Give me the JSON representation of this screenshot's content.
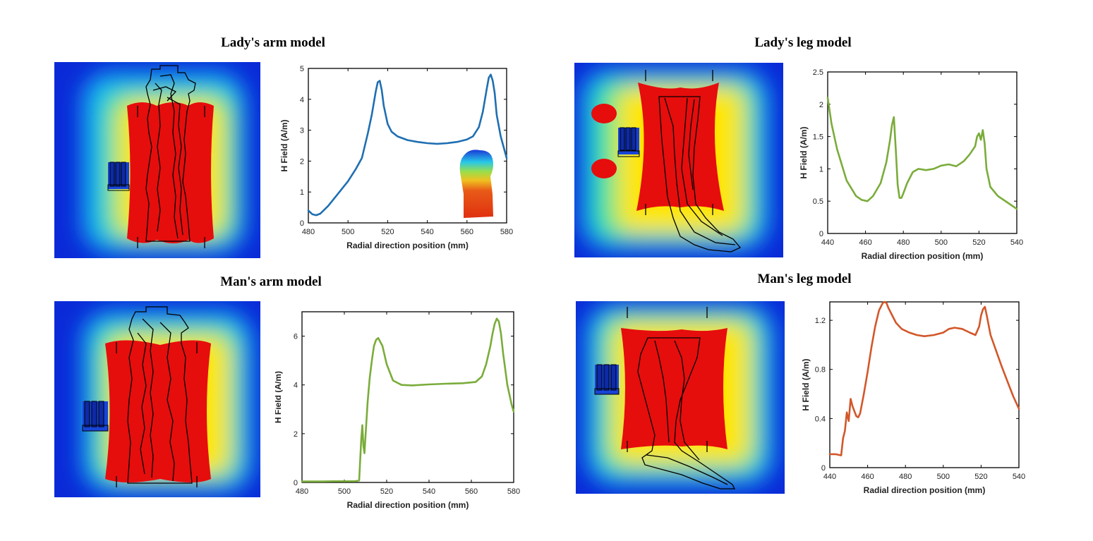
{
  "figure": {
    "panels": [
      {
        "id": "lady-arm",
        "title": "Lady's arm model"
      },
      {
        "id": "lady-leg",
        "title": "Lady's leg model"
      },
      {
        "id": "man-arm",
        "title": "Man's arm model"
      },
      {
        "id": "man-leg",
        "title": "Man's leg model"
      }
    ],
    "colors": {
      "field_high": "#e60d0d",
      "field_mid": "#ffe600",
      "field_low": "#0a2ad8",
      "outline": "#000000",
      "blue_series": "#1f6fb2",
      "green_series": "#7aac3a",
      "orange_series": "#d2572a"
    }
  },
  "chart_data": [
    {
      "id": "lady-arm",
      "type": "line",
      "title": "Lady's arm model",
      "xlabel": "Radial direction position (mm)",
      "ylabel": "H Field (A/m)",
      "xlim": [
        480,
        580
      ],
      "ylim": [
        0,
        5
      ],
      "xticks": [
        480,
        500,
        520,
        540,
        560,
        580
      ],
      "yticks": [
        0,
        1,
        2,
        3,
        4,
        5
      ],
      "ytick_labels": [
        "0",
        "1",
        "2",
        "3",
        "4",
        "5"
      ],
      "color": "#1f6fb2",
      "has_inset": true,
      "x": [
        480,
        482,
        484,
        486,
        490,
        495,
        500,
        504,
        507,
        510,
        512,
        514,
        515,
        516,
        517,
        518,
        520,
        522,
        525,
        530,
        535,
        540,
        545,
        550,
        555,
        560,
        563,
        566,
        568,
        570,
        571,
        572,
        573,
        574,
        575,
        577,
        580
      ],
      "y": [
        0.4,
        0.28,
        0.25,
        0.3,
        0.55,
        0.95,
        1.35,
        1.75,
        2.1,
        2.9,
        3.5,
        4.25,
        4.55,
        4.6,
        4.3,
        3.8,
        3.2,
        2.95,
        2.8,
        2.68,
        2.62,
        2.58,
        2.56,
        2.58,
        2.62,
        2.7,
        2.8,
        3.1,
        3.6,
        4.35,
        4.7,
        4.8,
        4.6,
        4.2,
        3.5,
        2.8,
        2.1
      ]
    },
    {
      "id": "lady-leg",
      "type": "line",
      "title": "Lady's leg model",
      "xlabel": "Radial direction position (mm)",
      "ylabel": "H Field (A/m)",
      "xlim": [
        440,
        540
      ],
      "ylim": [
        0,
        2.5
      ],
      "xticks": [
        440,
        460,
        480,
        500,
        520,
        540
      ],
      "yticks": [
        0,
        0.5,
        1,
        1.5,
        2,
        2.5
      ],
      "ytick_labels": [
        "0",
        "0.5",
        "1",
        "1.5",
        "2",
        "2.5"
      ],
      "color": "#7aac3a",
      "has_inset": false,
      "x": [
        440,
        442,
        445,
        450,
        455,
        458,
        461,
        464,
        468,
        471,
        473,
        474,
        475,
        476,
        477,
        478,
        479,
        480,
        482,
        485,
        488,
        492,
        496,
        500,
        504,
        508,
        512,
        515,
        518,
        519,
        520,
        521,
        522,
        523,
        524,
        526,
        530,
        535,
        540
      ],
      "y": [
        2.1,
        1.7,
        1.3,
        0.82,
        0.58,
        0.52,
        0.5,
        0.58,
        0.78,
        1.1,
        1.45,
        1.68,
        1.8,
        1.3,
        0.75,
        0.55,
        0.55,
        0.62,
        0.78,
        0.95,
        1.0,
        0.98,
        1.0,
        1.05,
        1.07,
        1.04,
        1.12,
        1.22,
        1.35,
        1.5,
        1.55,
        1.45,
        1.6,
        1.4,
        1.0,
        0.72,
        0.58,
        0.48,
        0.38
      ]
    },
    {
      "id": "man-arm",
      "type": "line",
      "title": "Man's arm model",
      "xlabel": "Radial direction position (mm)",
      "ylabel": "H Field (A/m)",
      "xlim": [
        480,
        580
      ],
      "ylim": [
        0,
        7
      ],
      "xticks": [
        480,
        500,
        520,
        540,
        560,
        580
      ],
      "yticks": [
        0,
        2,
        4,
        6
      ],
      "ytick_labels": [
        "0",
        "2",
        "4",
        "6"
      ],
      "color": "#7aac3a",
      "has_inset": false,
      "x": [
        480,
        485,
        490,
        495,
        500,
        505,
        507,
        508,
        508.5,
        509,
        509.5,
        510,
        511,
        512,
        513,
        514,
        515,
        516,
        518,
        520,
        523,
        527,
        532,
        540,
        548,
        556,
        562,
        565,
        567,
        569,
        570,
        571,
        572,
        573,
        574,
        575,
        577,
        579,
        580
      ],
      "y": [
        0.04,
        0.04,
        0.04,
        0.05,
        0.05,
        0.05,
        0.08,
        1.8,
        2.35,
        1.5,
        1.2,
        1.9,
        3.3,
        4.3,
        5.0,
        5.6,
        5.85,
        5.92,
        5.6,
        4.85,
        4.18,
        4.0,
        3.98,
        4.02,
        4.05,
        4.07,
        4.12,
        4.35,
        4.85,
        5.6,
        6.1,
        6.5,
        6.72,
        6.6,
        6.1,
        5.3,
        4.0,
        3.2,
        2.9
      ]
    },
    {
      "id": "man-leg",
      "type": "line",
      "title": "Man's leg model",
      "xlabel": "Radial direction position (mm)",
      "ylabel": "H Field (A/m)",
      "xlim": [
        440,
        540
      ],
      "ylim": [
        0,
        1.35
      ],
      "xticks": [
        440,
        460,
        480,
        500,
        520,
        540
      ],
      "yticks": [
        0,
        0.4,
        0.8,
        1.2
      ],
      "ytick_labels": [
        "0",
        "0.4",
        "0.8",
        "1.2"
      ],
      "color": "#d2572a",
      "has_inset": false,
      "x": [
        440,
        443,
        446,
        447,
        448,
        449,
        450,
        451,
        452,
        454,
        455,
        456,
        458,
        460,
        462,
        464,
        466,
        468,
        469,
        470,
        471,
        473,
        475,
        478,
        482,
        486,
        490,
        495,
        500,
        503,
        506,
        510,
        514,
        517,
        519,
        520,
        521,
        522,
        523,
        525,
        528,
        531,
        534,
        537,
        540
      ],
      "y": [
        0.11,
        0.11,
        0.1,
        0.24,
        0.3,
        0.45,
        0.38,
        0.56,
        0.5,
        0.42,
        0.41,
        0.44,
        0.6,
        0.78,
        0.98,
        1.15,
        1.28,
        1.34,
        1.35,
        1.34,
        1.3,
        1.24,
        1.18,
        1.13,
        1.1,
        1.08,
        1.07,
        1.08,
        1.1,
        1.13,
        1.14,
        1.13,
        1.1,
        1.08,
        1.15,
        1.24,
        1.29,
        1.31,
        1.24,
        1.08,
        0.95,
        0.82,
        0.7,
        0.58,
        0.48
      ]
    }
  ]
}
